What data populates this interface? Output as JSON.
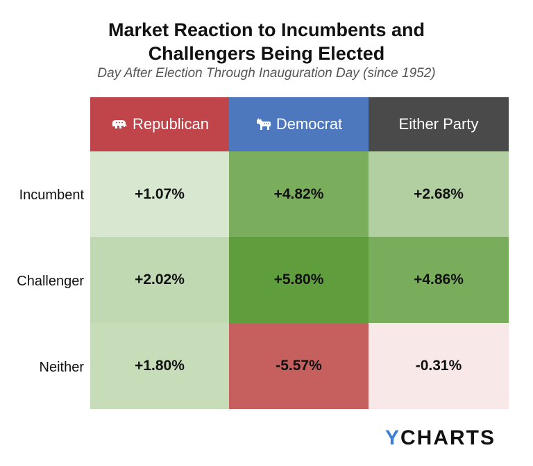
{
  "title_lines": [
    "Market Reaction to Incumbents and",
    "Challengers Being Elected"
  ],
  "subtitle": "Day After Election Through Inauguration Day (since 1952)",
  "chart_data": {
    "type": "table",
    "columns": [
      {
        "label": "Republican",
        "header_color": "#c0454a",
        "icon": "elephant-icon"
      },
      {
        "label": "Democrat",
        "header_color": "#4e78be",
        "icon": "donkey-icon"
      },
      {
        "label": "Either Party",
        "header_color": "#4a4a4a",
        "icon": ""
      }
    ],
    "rows": [
      {
        "label": "Incumbent",
        "values": [
          "+1.07%",
          "+4.82%",
          "+2.68%"
        ],
        "numeric": [
          1.07,
          4.82,
          2.68
        ]
      },
      {
        "label": "Challenger",
        "values": [
          "+2.02%",
          "+5.80%",
          "+4.86%"
        ],
        "numeric": [
          2.02,
          5.8,
          4.86
        ]
      },
      {
        "label": "Neither",
        "values": [
          "+1.80%",
          "-5.57%",
          "-0.31%"
        ],
        "numeric": [
          1.8,
          -5.57,
          -0.31
        ]
      }
    ]
  },
  "logo": {
    "accent": "Y",
    "rest": "CHARTS",
    "accent_color": "#3b7ed8"
  }
}
